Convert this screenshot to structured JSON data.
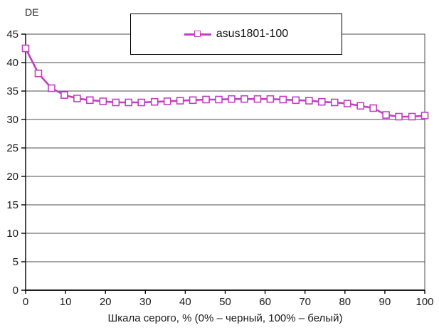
{
  "unit_label": "DE",
  "legend": {
    "series_label": "asus1801-100"
  },
  "colors": {
    "series": "#C23EC2",
    "axis": "#000000",
    "grid": "#4d4d4d",
    "text": "#1a1a1a",
    "background": "#ffffff"
  },
  "chart_data": {
    "type": "line",
    "title": "",
    "xlabel": "Шкала серого, % (0% – черный, 100% – белый)",
    "ylabel": "DE",
    "xlim": [
      0,
      100
    ],
    "ylim": [
      0,
      45
    ],
    "x_ticks": [
      0,
      10,
      20,
      30,
      40,
      50,
      60,
      70,
      80,
      90,
      100
    ],
    "y_ticks": [
      0,
      5,
      10,
      15,
      20,
      25,
      30,
      35,
      40,
      45
    ],
    "grid": "horizontal",
    "legend_position": "top-center",
    "series": [
      {
        "name": "asus1801-100",
        "marker": "open-square",
        "x": [
          0,
          3.2,
          6.5,
          9.7,
          12.9,
          16.1,
          19.4,
          22.6,
          25.8,
          29.0,
          32.3,
          35.5,
          38.7,
          41.9,
          45.2,
          48.4,
          51.6,
          54.8,
          58.1,
          61.3,
          64.5,
          67.7,
          71.0,
          74.2,
          77.4,
          80.6,
          83.9,
          87.1,
          90.3,
          93.5,
          96.8,
          100
        ],
        "y": [
          42.5,
          38.1,
          35.5,
          34.3,
          33.7,
          33.4,
          33.2,
          33.0,
          33.0,
          33.0,
          33.1,
          33.2,
          33.3,
          33.4,
          33.5,
          33.5,
          33.6,
          33.6,
          33.6,
          33.6,
          33.5,
          33.4,
          33.3,
          33.1,
          33.0,
          32.8,
          32.4,
          32.0,
          30.8,
          30.5,
          30.5,
          30.7
        ]
      }
    ]
  }
}
